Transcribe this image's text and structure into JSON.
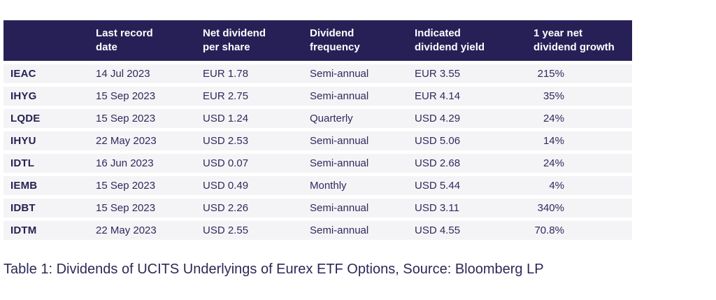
{
  "chart_data": {
    "type": "table",
    "title": "Table 1: Dividends of UCITS Underlyings of Eurex ETF Options, Source: Bloomberg LP",
    "columns": [
      "",
      "Last record date",
      "Net dividend per share",
      "Dividend frequency",
      "Indicated dividend yield",
      "1 year net dividend growth"
    ],
    "rows": [
      [
        "IEAC",
        "14 Jul 2023",
        "EUR 1.78",
        "Semi-annual",
        "EUR 3.55",
        "215%"
      ],
      [
        "IHYG",
        "15 Sep 2023",
        "EUR 2.75",
        "Semi-annual",
        "EUR 4.14",
        "35%"
      ],
      [
        "LQDE",
        "15 Sep 2023",
        "USD 1.24",
        "Quarterly",
        "USD 4.29",
        "24%"
      ],
      [
        "IHYU",
        "22 May 2023",
        "USD 2.53",
        "Semi-annual",
        "USD 5.06",
        "14%"
      ],
      [
        "IDTL",
        "16 Jun 2023",
        "USD 0.07",
        "Semi-annual",
        "USD 2.68",
        "24%"
      ],
      [
        "IEMB",
        "15 Sep 2023",
        "USD 0.49",
        "Monthly",
        "USD 5.44",
        "4%"
      ],
      [
        "IDBT",
        "15 Sep 2023",
        "USD 2.26",
        "Semi-annual",
        "USD 3.11",
        "340%"
      ],
      [
        "IDTM",
        "22 May 2023",
        "USD 2.55",
        "Semi-annual",
        "USD 4.55",
        "70.8%"
      ]
    ]
  },
  "table": {
    "headers": {
      "c1": {
        "line1": "Last record",
        "line2": "date"
      },
      "c2": {
        "line1": "Net dividend",
        "line2": "per share"
      },
      "c3": {
        "line1": "Dividend",
        "line2": "frequency"
      },
      "c4": {
        "line1": "Indicated",
        "line2": "dividend yield"
      },
      "c5": {
        "line1": "1 year net",
        "line2": "dividend growth"
      }
    },
    "rows": [
      {
        "ticker": "IEAC",
        "date": "14 Jul 2023",
        "net_div": "EUR 1.78",
        "freq": "Semi-annual",
        "yield": "EUR 3.55",
        "growth": "215%"
      },
      {
        "ticker": "IHYG",
        "date": "15 Sep 2023",
        "net_div": "EUR 2.75",
        "freq": "Semi-annual",
        "yield": "EUR 4.14",
        "growth": "35%"
      },
      {
        "ticker": "LQDE",
        "date": "15 Sep 2023",
        "net_div": "USD 1.24",
        "freq": "Quarterly",
        "yield": "USD 4.29",
        "growth": "24%"
      },
      {
        "ticker": "IHYU",
        "date": "22 May 2023",
        "net_div": "USD 2.53",
        "freq": "Semi-annual",
        "yield": "USD 5.06",
        "growth": "14%"
      },
      {
        "ticker": "IDTL",
        "date": "16 Jun 2023",
        "net_div": "USD 0.07",
        "freq": "Semi-annual",
        "yield": "USD 2.68",
        "growth": "24%"
      },
      {
        "ticker": "IEMB",
        "date": "15 Sep 2023",
        "net_div": "USD 0.49",
        "freq": "Monthly",
        "yield": "USD 5.44",
        "growth": "4%"
      },
      {
        "ticker": "IDBT",
        "date": "15 Sep 2023",
        "net_div": "USD 2.26",
        "freq": "Semi-annual",
        "yield": "USD 3.11",
        "growth": "340%"
      },
      {
        "ticker": "IDTM",
        "date": "22 May 2023",
        "net_div": "USD 2.55",
        "freq": "Semi-annual",
        "yield": "USD 4.55",
        "growth": "70.8%"
      }
    ]
  },
  "caption": "Table 1: Dividends of UCITS Underlyings of Eurex ETF Options, Source: Bloomberg LP",
  "colors": {
    "header_bg": "#272057",
    "header_text": "#ffffff",
    "row_bg": "#f4f4f6",
    "text": "#2e2a5e",
    "page_bg": "#ffffff"
  }
}
